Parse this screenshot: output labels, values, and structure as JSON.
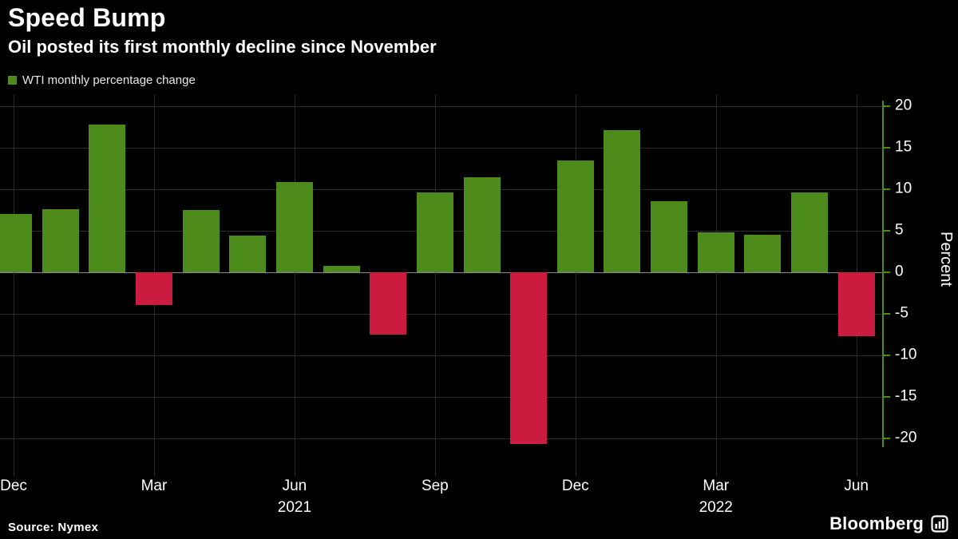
{
  "header": {
    "title": "Speed Bump",
    "subtitle": "Oil posted its first monthly decline since November"
  },
  "legend": {
    "label": "WTI monthly percentage change",
    "swatch_color": "#4d8c1b"
  },
  "chart_data": {
    "type": "bar",
    "title": "Speed Bump",
    "subtitle": "Oil posted its first monthly decline since November",
    "series_name": "WTI monthly percentage change",
    "xlabel": "",
    "ylabel": "Percent",
    "ylim": [
      -22.5,
      21.5
    ],
    "y_ticks": [
      20,
      15,
      10,
      5,
      0,
      -5,
      -10,
      -15,
      -20
    ],
    "grid": true,
    "legend_position": "top-left",
    "positive_color": "#4d8c1b",
    "negative_color": "#cb1c3f",
    "background_color": "#000000",
    "x": [
      "Dec 2020",
      "Jan 2021",
      "Feb 2021",
      "Mar 2021",
      "Apr 2021",
      "May 2021",
      "Jun 2021",
      "Jul 2021",
      "Aug 2021",
      "Sep 2021",
      "Oct 2021",
      "Nov 2021",
      "Dec 2021",
      "Jan 2022",
      "Feb 2022",
      "Mar 2022",
      "Apr 2022",
      "May 2022",
      "Jun 2022"
    ],
    "values": [
      7.0,
      7.6,
      17.8,
      -3.9,
      7.5,
      4.4,
      10.9,
      0.8,
      -7.5,
      9.6,
      11.4,
      -20.7,
      13.5,
      17.1,
      8.6,
      4.8,
      4.5,
      9.6,
      -7.7
    ],
    "x_tick_indices": [
      0,
      3,
      6,
      9,
      12,
      15,
      18
    ],
    "x_tick_labels": [
      "Dec",
      "Mar",
      "Jun",
      "Sep",
      "Dec",
      "Mar",
      "Jun"
    ],
    "year_labels": [
      {
        "index": 6,
        "label": "2021"
      },
      {
        "index": 15,
        "label": "2022"
      }
    ]
  },
  "footer": {
    "source": "Source: Nymex",
    "brand": "Bloomberg"
  }
}
